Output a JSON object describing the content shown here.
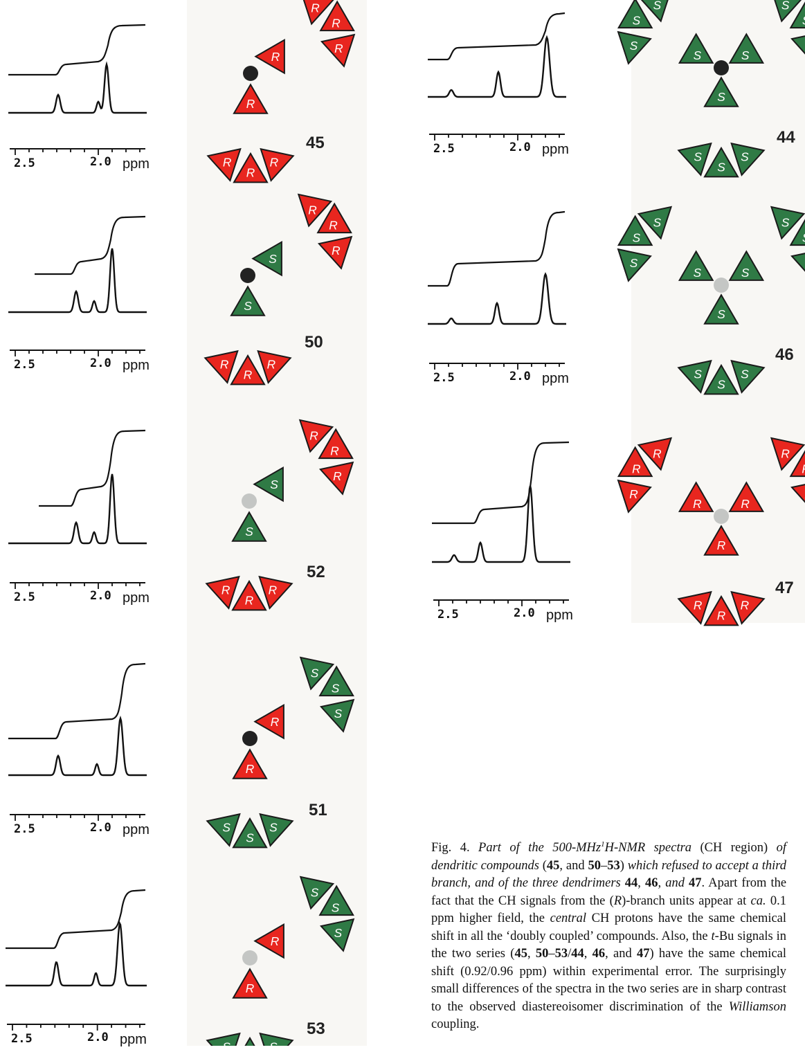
{
  "axis": {
    "tick_left": "2.5",
    "tick_right": "2.0",
    "unit": "ppm"
  },
  "spectra": [
    {
      "id": "45",
      "compound_label": "45"
    },
    {
      "id": "50",
      "compound_label": "50"
    },
    {
      "id": "52",
      "compound_label": "52"
    },
    {
      "id": "51",
      "compound_label": "51"
    },
    {
      "id": "53",
      "compound_label": "53"
    },
    {
      "id": "44",
      "compound_label": "44"
    },
    {
      "id": "46",
      "compound_label": "46"
    },
    {
      "id": "47",
      "compound_label": "47"
    }
  ],
  "dendrimers": {
    "colors": {
      "R": "#e8261f",
      "S": "#2f7a45",
      "core_dark": "#222222",
      "core_light": "#c4c6c4"
    },
    "letters": {
      "R": "R",
      "S": "S"
    }
  },
  "caption": {
    "fig": "Fig. 4.",
    "t1": "Part of the 500-MHz",
    "sup": "1",
    "t2": "H-NMR spectra",
    "t3": "(CH region)",
    "t4": "of dendritic compounds",
    "t5": "(",
    "b1": "45",
    "t6": ", and",
    "b2": "50",
    "t7": "–",
    "b3": "53",
    "t8": ")",
    "t9": "which refused to accept a third branch, and of the three dendrimers",
    "b4": "44",
    "t10": ",",
    "b5": "46",
    "t11": ", and",
    "b6": "47",
    "t12": ".",
    "t13": "Apart from the fact that the CH signals from the (",
    "i1": "R",
    "t14": ")-branch units appear at",
    "i2": "ca.",
    "t15": "0.1 ppm higher field, the",
    "i3": "central",
    "t16": "CH protons have the same chemical shift in all the ‘doubly coupled’ compounds. Also, the",
    "i4": "t",
    "t17": "-Bu signals in the two series (",
    "b7": "45",
    "t18": ",",
    "b8": "50",
    "t19": "–",
    "b9": "53",
    "t20": "/",
    "b10": "44",
    "t21": ",",
    "b11": "46",
    "t22": ", and",
    "b12": "47",
    "t23": ") have the same chemical shift (0.92/0.96 ppm) within experimental error. The surprisingly small differences of the spectra in the two series are in sharp contrast to the observed diastereoisomer discrimination of the",
    "i5": "Williamson",
    "t24": "coupling."
  }
}
